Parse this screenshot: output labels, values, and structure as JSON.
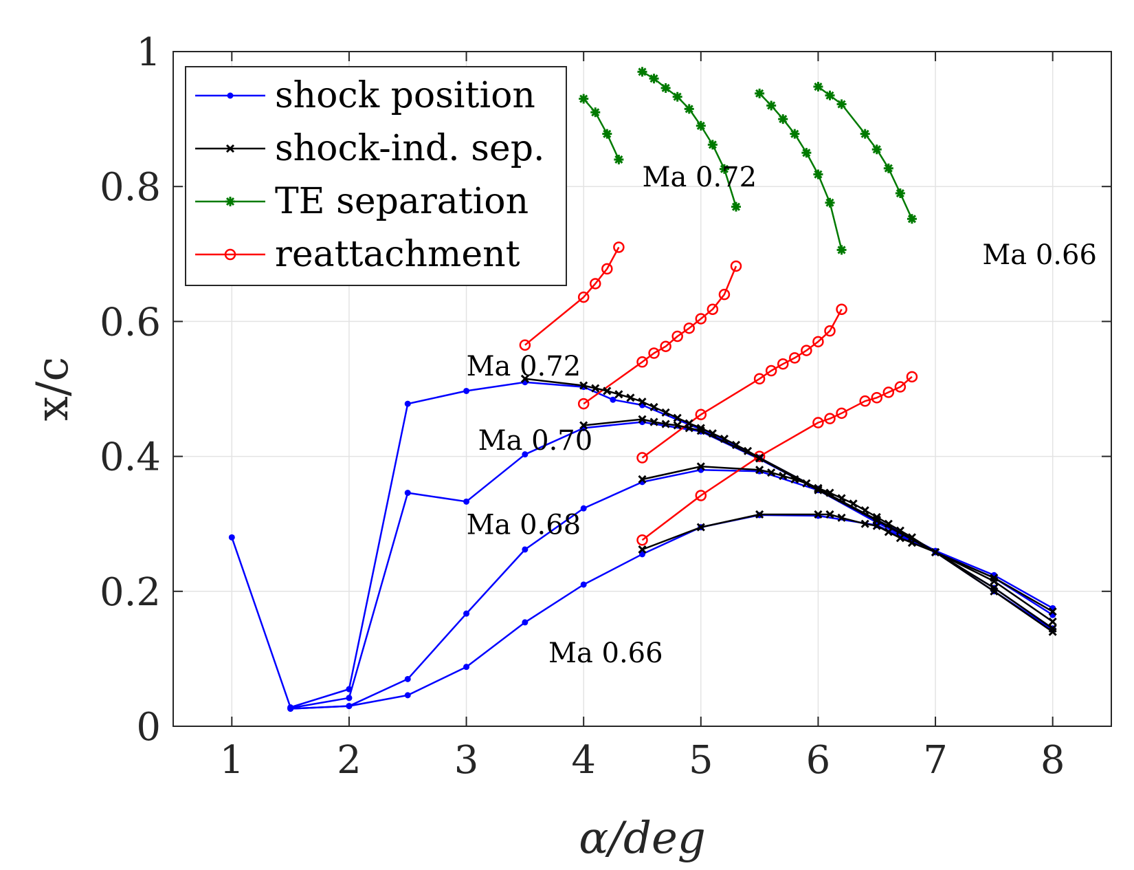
{
  "chart_data": {
    "type": "line",
    "xlabel": "α/deg",
    "ylabel": "x/c",
    "xlim": [
      0.5,
      8.5
    ],
    "ylim": [
      0,
      1
    ],
    "xticks": [
      1,
      2,
      3,
      4,
      5,
      6,
      7,
      8
    ],
    "yticks": [
      0,
      0.2,
      0.4,
      0.6,
      0.8,
      1
    ],
    "ytick_labels": [
      "0",
      "0.2",
      "0.4",
      "0.6",
      "0.8",
      "1"
    ],
    "grid": true,
    "legend": {
      "placement": "top-left",
      "entries": [
        {
          "label": "shock position",
          "color": "#0000ff",
          "marker": "dot"
        },
        {
          "label": "shock-ind. sep.",
          "color": "#000000",
          "marker": "x"
        },
        {
          "label": "TE separation",
          "color": "#007a00",
          "marker": "star"
        },
        {
          "label": "reattachment",
          "color": "#ff0000",
          "marker": "circle"
        }
      ]
    },
    "annotations": [
      {
        "text": "Ma 0.72",
        "x": 3.0,
        "y": 0.52
      },
      {
        "text": "Ma 0.70",
        "x": 3.1,
        "y": 0.41
      },
      {
        "text": "Ma 0.68",
        "x": 3.0,
        "y": 0.285
      },
      {
        "text": "Ma 0.66",
        "x": 3.7,
        "y": 0.095
      },
      {
        "text": "Ma 0.72",
        "x": 4.5,
        "y": 0.8
      },
      {
        "text": "Ma 0.66",
        "x": 7.4,
        "y": 0.685
      }
    ],
    "series": [
      {
        "name": "shock position Ma 0.72",
        "group": "shock position",
        "color": "#0000ff",
        "marker": "dot",
        "x": [
          1,
          1.5,
          2,
          2.5,
          3,
          3.5,
          4,
          4.25,
          4.5,
          5,
          5.5,
          6,
          6.5,
          7,
          7.5,
          8
        ],
        "y": [
          0.28,
          0.028,
          0.055,
          0.478,
          0.497,
          0.51,
          0.503,
          0.484,
          0.476,
          0.44,
          0.398,
          0.352,
          0.306,
          0.26,
          0.224,
          0.175
        ]
      },
      {
        "name": "shock position Ma 0.70",
        "group": "shock position",
        "color": "#0000ff",
        "marker": "dot",
        "x": [
          1.5,
          2,
          2.5,
          3,
          3.5,
          4,
          4.5,
          5,
          5.5,
          6,
          6.5,
          7,
          7.5,
          8
        ],
        "y": [
          0.027,
          0.042,
          0.346,
          0.333,
          0.403,
          0.442,
          0.451,
          0.437,
          0.396,
          0.35,
          0.304,
          0.258,
          0.22,
          0.165
        ]
      },
      {
        "name": "shock position Ma 0.68",
        "group": "shock position",
        "color": "#0000ff",
        "marker": "dot",
        "x": [
          1.5,
          2,
          2.5,
          3,
          3.5,
          4,
          4.5,
          5,
          5.5,
          6,
          6.5,
          7,
          7.5,
          8
        ],
        "y": [
          0.026,
          0.03,
          0.07,
          0.167,
          0.262,
          0.323,
          0.362,
          0.38,
          0.378,
          0.35,
          0.302,
          0.258,
          0.205,
          0.145
        ]
      },
      {
        "name": "shock position Ma 0.66",
        "group": "shock position",
        "color": "#0000ff",
        "marker": "dot",
        "x": [
          1.5,
          2,
          2.5,
          3,
          3.5,
          4,
          4.5,
          5,
          5.5,
          6,
          6.5,
          7,
          7.5,
          8
        ],
        "y": [
          0.026,
          0.03,
          0.046,
          0.088,
          0.154,
          0.21,
          0.255,
          0.295,
          0.313,
          0.312,
          0.298,
          0.258,
          0.2,
          0.143
        ]
      },
      {
        "name": "shock-ind. sep. Ma 0.72",
        "group": "shock-ind. sep.",
        "color": "#000000",
        "marker": "x",
        "x": [
          3.5,
          4,
          4.1,
          4.2,
          4.3,
          4.4,
          4.5,
          4.6,
          4.7,
          4.8,
          4.9,
          5,
          5.1,
          5.2,
          5.3,
          5.4,
          5.5,
          6,
          6.5,
          7,
          7.5,
          8
        ],
        "y": [
          0.515,
          0.505,
          0.501,
          0.497,
          0.492,
          0.487,
          0.481,
          0.473,
          0.465,
          0.457,
          0.449,
          0.442,
          0.434,
          0.426,
          0.417,
          0.408,
          0.398,
          0.352,
          0.306,
          0.258,
          0.22,
          0.17
        ]
      },
      {
        "name": "shock-ind. sep. Ma 0.70",
        "group": "shock-ind. sep.",
        "color": "#000000",
        "marker": "x",
        "x": [
          4,
          4.5,
          4.6,
          4.7,
          4.8,
          4.9,
          5,
          5.5,
          6,
          6.5,
          7,
          7.5,
          8
        ],
        "y": [
          0.446,
          0.455,
          0.451,
          0.448,
          0.446,
          0.442,
          0.438,
          0.397,
          0.35,
          0.305,
          0.258,
          0.215,
          0.155
        ]
      },
      {
        "name": "shock-ind. sep. Ma 0.68",
        "group": "shock-ind. sep.",
        "color": "#000000",
        "marker": "x",
        "x": [
          4.5,
          5,
          5.5,
          5.6,
          5.7,
          5.8,
          5.9,
          6,
          6.1,
          6.2,
          6.3,
          6.4,
          6.5,
          6.6,
          6.7,
          6.8,
          7,
          7.5,
          8
        ],
        "y": [
          0.366,
          0.385,
          0.38,
          0.376,
          0.371,
          0.366,
          0.36,
          0.353,
          0.346,
          0.338,
          0.33,
          0.32,
          0.31,
          0.3,
          0.29,
          0.28,
          0.258,
          0.205,
          0.145
        ]
      },
      {
        "name": "shock-ind. sep. Ma 0.66",
        "group": "shock-ind. sep.",
        "color": "#000000",
        "marker": "x",
        "x": [
          4.5,
          5,
          5.5,
          6,
          6.1,
          6.2,
          6.4,
          6.5,
          6.6,
          6.7,
          6.8,
          7,
          7.5,
          8
        ],
        "y": [
          0.262,
          0.295,
          0.314,
          0.314,
          0.314,
          0.309,
          0.3,
          0.297,
          0.288,
          0.279,
          0.272,
          0.258,
          0.2,
          0.14
        ]
      },
      {
        "name": "TE separation Ma 0.72",
        "group": "TE separation",
        "color": "#007a00",
        "marker": "star",
        "x": [
          4,
          4.1,
          4.2,
          4.3
        ],
        "y": [
          0.93,
          0.91,
          0.878,
          0.84
        ]
      },
      {
        "name": "TE separation Ma 0.70",
        "group": "TE separation",
        "color": "#007a00",
        "marker": "star",
        "x": [
          4.5,
          4.6,
          4.7,
          4.8,
          4.9,
          5,
          5.1,
          5.2,
          5.3
        ],
        "y": [
          0.97,
          0.96,
          0.946,
          0.933,
          0.915,
          0.89,
          0.862,
          0.826,
          0.77
        ]
      },
      {
        "name": "TE separation Ma 0.68",
        "group": "TE separation",
        "color": "#007a00",
        "marker": "star",
        "x": [
          5.5,
          5.6,
          5.7,
          5.8,
          5.9,
          6,
          6.1,
          6.2
        ],
        "y": [
          0.938,
          0.92,
          0.9,
          0.878,
          0.85,
          0.818,
          0.776,
          0.706
        ]
      },
      {
        "name": "TE separation Ma 0.66",
        "group": "TE separation",
        "color": "#007a00",
        "marker": "star",
        "x": [
          6,
          6.1,
          6.2,
          6.4,
          6.5,
          6.6,
          6.7,
          6.8
        ],
        "y": [
          0.948,
          0.935,
          0.922,
          0.878,
          0.855,
          0.827,
          0.79,
          0.752
        ]
      },
      {
        "name": "reattachment Ma 0.72",
        "group": "reattachment",
        "color": "#ff0000",
        "marker": "circle",
        "x": [
          3.5,
          4,
          4.1,
          4.2,
          4.3
        ],
        "y": [
          0.565,
          0.636,
          0.656,
          0.678,
          0.71
        ]
      },
      {
        "name": "reattachment Ma 0.70",
        "group": "reattachment",
        "color": "#ff0000",
        "marker": "circle",
        "x": [
          4,
          4.5,
          4.6,
          4.7,
          4.8,
          4.9,
          5,
          5.1,
          5.2,
          5.3
        ],
        "y": [
          0.478,
          0.54,
          0.553,
          0.563,
          0.578,
          0.59,
          0.604,
          0.618,
          0.64,
          0.682
        ]
      },
      {
        "name": "reattachment Ma 0.68",
        "group": "reattachment",
        "color": "#ff0000",
        "marker": "circle",
        "x": [
          4.5,
          5,
          5.5,
          5.6,
          5.7,
          5.8,
          5.9,
          6,
          6.1,
          6.2
        ],
        "y": [
          0.398,
          0.462,
          0.515,
          0.527,
          0.537,
          0.546,
          0.557,
          0.57,
          0.586,
          0.618
        ]
      },
      {
        "name": "reattachment Ma 0.66",
        "group": "reattachment",
        "color": "#ff0000",
        "marker": "circle",
        "x": [
          4.5,
          5,
          5.5,
          6,
          6.1,
          6.2,
          6.4,
          6.5,
          6.6,
          6.7,
          6.8
        ],
        "y": [
          0.276,
          0.342,
          0.4,
          0.45,
          0.456,
          0.464,
          0.482,
          0.487,
          0.495,
          0.503,
          0.518
        ]
      }
    ]
  }
}
